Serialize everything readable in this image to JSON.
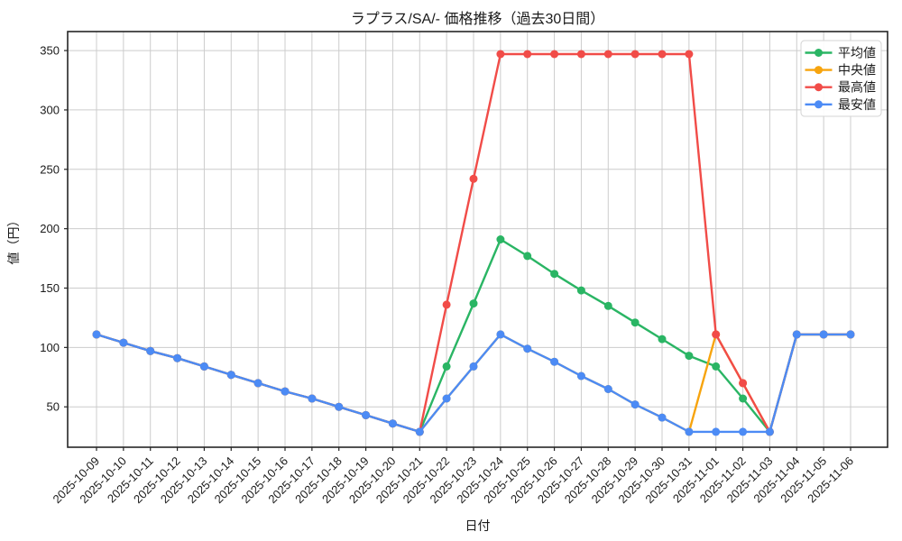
{
  "chart_data": {
    "type": "line",
    "title": "ラプラス/SA/- 価格推移（過去30日間）",
    "xlabel": "日付",
    "ylabel": "値（円）",
    "grid": true,
    "legend_position": "top-right",
    "ylim": [
      16,
      366
    ],
    "yticks": [
      50,
      100,
      150,
      200,
      250,
      300,
      350
    ],
    "dates": [
      "2025-10-09",
      "2025-10-10",
      "2025-10-11",
      "2025-10-12",
      "2025-10-13",
      "2025-10-14",
      "2025-10-15",
      "2025-10-16",
      "2025-10-17",
      "2025-10-18",
      "2025-10-19",
      "2025-10-20",
      "2025-10-21",
      "2025-10-22",
      "2025-10-23",
      "2025-10-24",
      "2025-10-25",
      "2025-10-26",
      "2025-10-27",
      "2025-10-28",
      "2025-10-29",
      "2025-10-30",
      "2025-10-31",
      "2025-11-01",
      "2025-11-02",
      "2025-11-03",
      "2025-11-04",
      "2025-11-05",
      "2025-11-06"
    ],
    "series": [
      {
        "key": "avg",
        "label": "平均値",
        "color": "#2ab564",
        "values": [
          111,
          104,
          97,
          91,
          84,
          77,
          70,
          63,
          57,
          50,
          43,
          36,
          29,
          84,
          137,
          191,
          177,
          162,
          148,
          135,
          121,
          107,
          93,
          84,
          57,
          29,
          111,
          111,
          111
        ]
      },
      {
        "key": "median",
        "label": "中央値",
        "color": "#f7a40e",
        "values": [
          111,
          104,
          97,
          91,
          84,
          77,
          70,
          63,
          57,
          50,
          43,
          36,
          29,
          57,
          84,
          111,
          99,
          88,
          76,
          65,
          52,
          41,
          29,
          111,
          70,
          29,
          111,
          111,
          111
        ]
      },
      {
        "key": "max",
        "label": "最高値",
        "color": "#f14c48",
        "values": [
          111,
          104,
          97,
          91,
          84,
          77,
          70,
          63,
          57,
          50,
          43,
          36,
          29,
          136,
          242,
          347,
          347,
          347,
          347,
          347,
          347,
          347,
          347,
          111,
          70,
          29,
          111,
          111,
          111
        ]
      },
      {
        "key": "min",
        "label": "最安値",
        "color": "#4c8bf5",
        "values": [
          111,
          104,
          97,
          91,
          84,
          77,
          70,
          63,
          57,
          50,
          43,
          36,
          29,
          57,
          84,
          111,
          99,
          88,
          76,
          65,
          52,
          41,
          29,
          29,
          29,
          29,
          111,
          111,
          111
        ]
      }
    ]
  }
}
